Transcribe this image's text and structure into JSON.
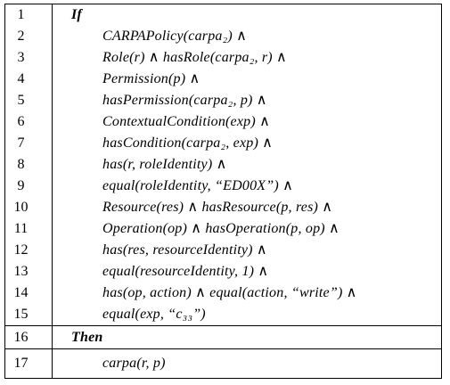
{
  "rule": {
    "lines": [
      {
        "number": "1",
        "text": "If",
        "kind": "keyword"
      },
      {
        "number": "2",
        "text": "CARPAPolicy(carpa₂) ∧",
        "kind": "body"
      },
      {
        "number": "3",
        "text": "Role(r) ∧ hasRole(carpa₂, r) ∧",
        "kind": "body"
      },
      {
        "number": "4",
        "text": "Permission(p) ∧",
        "kind": "body"
      },
      {
        "number": "5",
        "text": "hasPermission(carpa₂, p) ∧",
        "kind": "body"
      },
      {
        "number": "6",
        "text": "ContextualCondition(exp) ∧",
        "kind": "body"
      },
      {
        "number": "7",
        "text": "hasCondition(carpa₂, exp) ∧",
        "kind": "body"
      },
      {
        "number": "8",
        "text": "has(r, roleIdentity) ∧",
        "kind": "body"
      },
      {
        "number": "9",
        "text": "equal(roleIdentity, “ED00X”) ∧",
        "kind": "body"
      },
      {
        "number": "10",
        "text": "Resource(res) ∧ hasResource(p, res) ∧",
        "kind": "body"
      },
      {
        "number": "11",
        "text": "Operation(op) ∧ hasOperation(p, op) ∧",
        "kind": "body"
      },
      {
        "number": "12",
        "text": "has(res, resourceIdentity) ∧",
        "kind": "body"
      },
      {
        "number": "13",
        "text": "equal(resourceIdentity, 1) ∧",
        "kind": "body"
      },
      {
        "number": "14",
        "text": "has(op, action) ∧ equal(action, “write”) ∧",
        "kind": "body"
      },
      {
        "number": "15",
        "text": "equal(exp, “c₃₃”)",
        "kind": "body"
      },
      {
        "number": "16",
        "text": "Then",
        "kind": "keyword"
      },
      {
        "number": "17",
        "text": "carpa(r, p)",
        "kind": "body"
      }
    ]
  }
}
